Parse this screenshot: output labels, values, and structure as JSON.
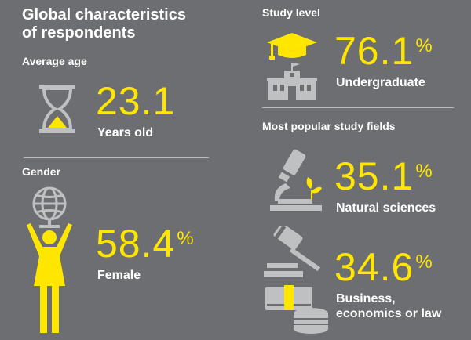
{
  "title_line1": "Global characteristics",
  "title_line2": "of respondents",
  "average_age": {
    "heading": "Average age",
    "value": "23.1",
    "unit": "Years old"
  },
  "gender": {
    "heading": "Gender",
    "value": "58.4",
    "percent": "%",
    "label": "Female"
  },
  "study_level": {
    "heading": "Study level",
    "value": "76.1",
    "percent": "%",
    "label": "Undergraduate"
  },
  "study_fields": {
    "heading": "Most popular study fields",
    "items": [
      {
        "value": "35.1",
        "percent": "%",
        "label_line1": "Natural sciences",
        "label_line2": ""
      },
      {
        "value": "34.6",
        "percent": "%",
        "label_line1": "Business,",
        "label_line2": "economics or law"
      }
    ]
  },
  "colors": {
    "background": "#6d6e71",
    "accent": "#ffe600",
    "icon_grey": "#bfc0c2",
    "text": "#ffffff"
  },
  "icons": [
    "hourglass-icon",
    "globe-woman-icon",
    "graduation-building-icon",
    "microscope-icon",
    "gavel-icon",
    "money-icon"
  ]
}
